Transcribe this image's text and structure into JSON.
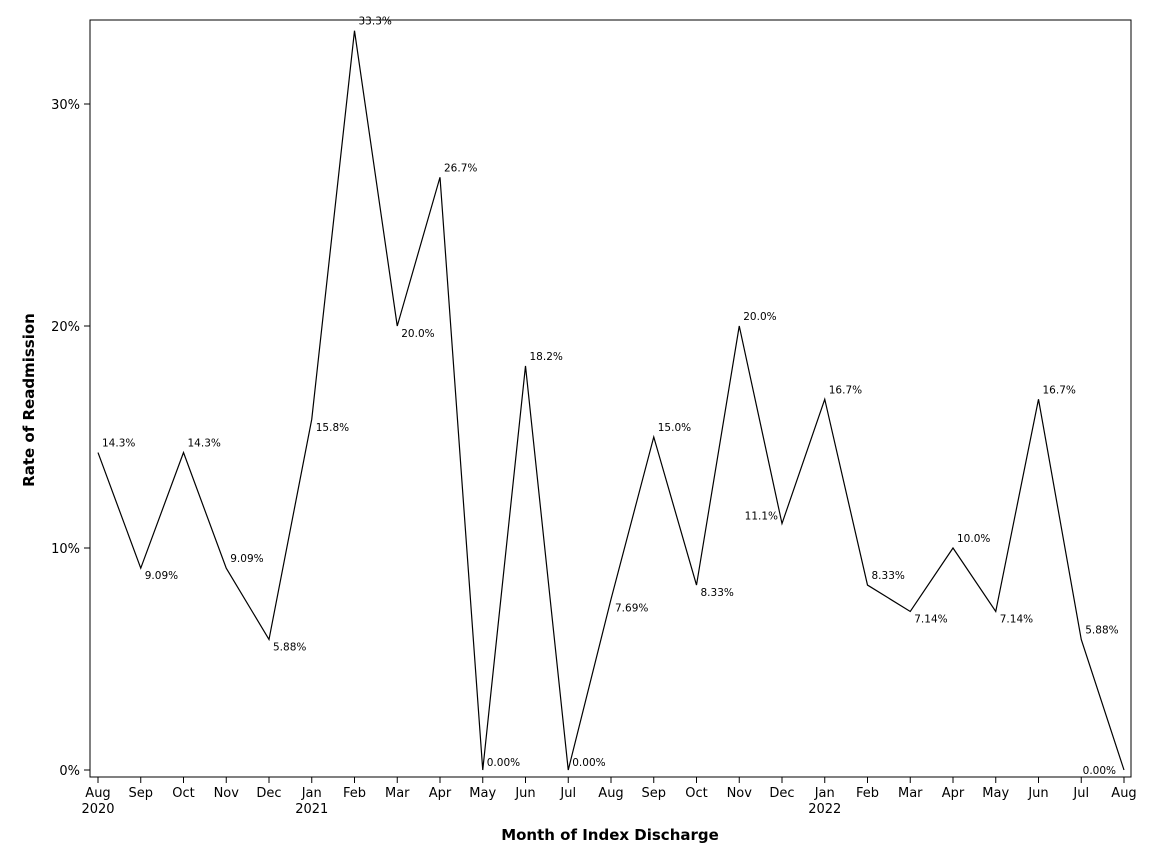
{
  "chart_data": {
    "type": "line",
    "title": "",
    "xlabel": "Month of Index Discharge",
    "ylabel": "Rate of Readmission",
    "ylim": [
      0,
      0.333
    ],
    "grid": false,
    "legend": "none",
    "line_color": "#000000",
    "y_ticks": [
      {
        "value": 0,
        "label": "0%"
      },
      {
        "value": 0.1,
        "label": "10%"
      },
      {
        "value": 0.2,
        "label": "20%"
      },
      {
        "value": 0.3,
        "label": "30%"
      }
    ],
    "x_ticks": [
      {
        "month": "Aug",
        "year": "2020"
      },
      {
        "month": "Sep",
        "year": ""
      },
      {
        "month": "Oct",
        "year": ""
      },
      {
        "month": "Nov",
        "year": ""
      },
      {
        "month": "Dec",
        "year": ""
      },
      {
        "month": "Jan",
        "year": "2021"
      },
      {
        "month": "Feb",
        "year": ""
      },
      {
        "month": "Mar",
        "year": ""
      },
      {
        "month": "Apr",
        "year": ""
      },
      {
        "month": "May",
        "year": ""
      },
      {
        "month": "Jun",
        "year": ""
      },
      {
        "month": "Jul",
        "year": ""
      },
      {
        "month": "Aug",
        "year": ""
      },
      {
        "month": "Sep",
        "year": ""
      },
      {
        "month": "Oct",
        "year": ""
      },
      {
        "month": "Nov",
        "year": ""
      },
      {
        "month": "Dec",
        "year": ""
      },
      {
        "month": "Jan",
        "year": "2022"
      },
      {
        "month": "Feb",
        "year": ""
      },
      {
        "month": "Mar",
        "year": ""
      },
      {
        "month": "Apr",
        "year": ""
      },
      {
        "month": "May",
        "year": ""
      },
      {
        "month": "Jun",
        "year": ""
      },
      {
        "month": "Jul",
        "year": ""
      },
      {
        "month": "Aug",
        "year": ""
      }
    ],
    "series": [
      {
        "values": [
          0.143,
          0.0909,
          0.143,
          0.0909,
          0.0588,
          0.158,
          0.333,
          0.2,
          0.267,
          0.0,
          0.182,
          0.0,
          0.0769,
          0.15,
          0.0833,
          0.2,
          0.111,
          0.167,
          0.0833,
          0.0714,
          0.1,
          0.0714,
          0.167,
          0.0588,
          0.0
        ],
        "labels": [
          "14.3%",
          "9.09%",
          "14.3%",
          "9.09%",
          "5.88%",
          "15.8%",
          "33.3%",
          "20.0%",
          "26.7%",
          "0.00%",
          "18.2%",
          "0.00%",
          "7.69%",
          "15.0%",
          "8.33%",
          "20.0%",
          "11.1%",
          "16.7%",
          "8.33%",
          "7.14%",
          "10.0%",
          "7.14%",
          "16.7%",
          "5.88%",
          "0.00%"
        ]
      }
    ]
  }
}
